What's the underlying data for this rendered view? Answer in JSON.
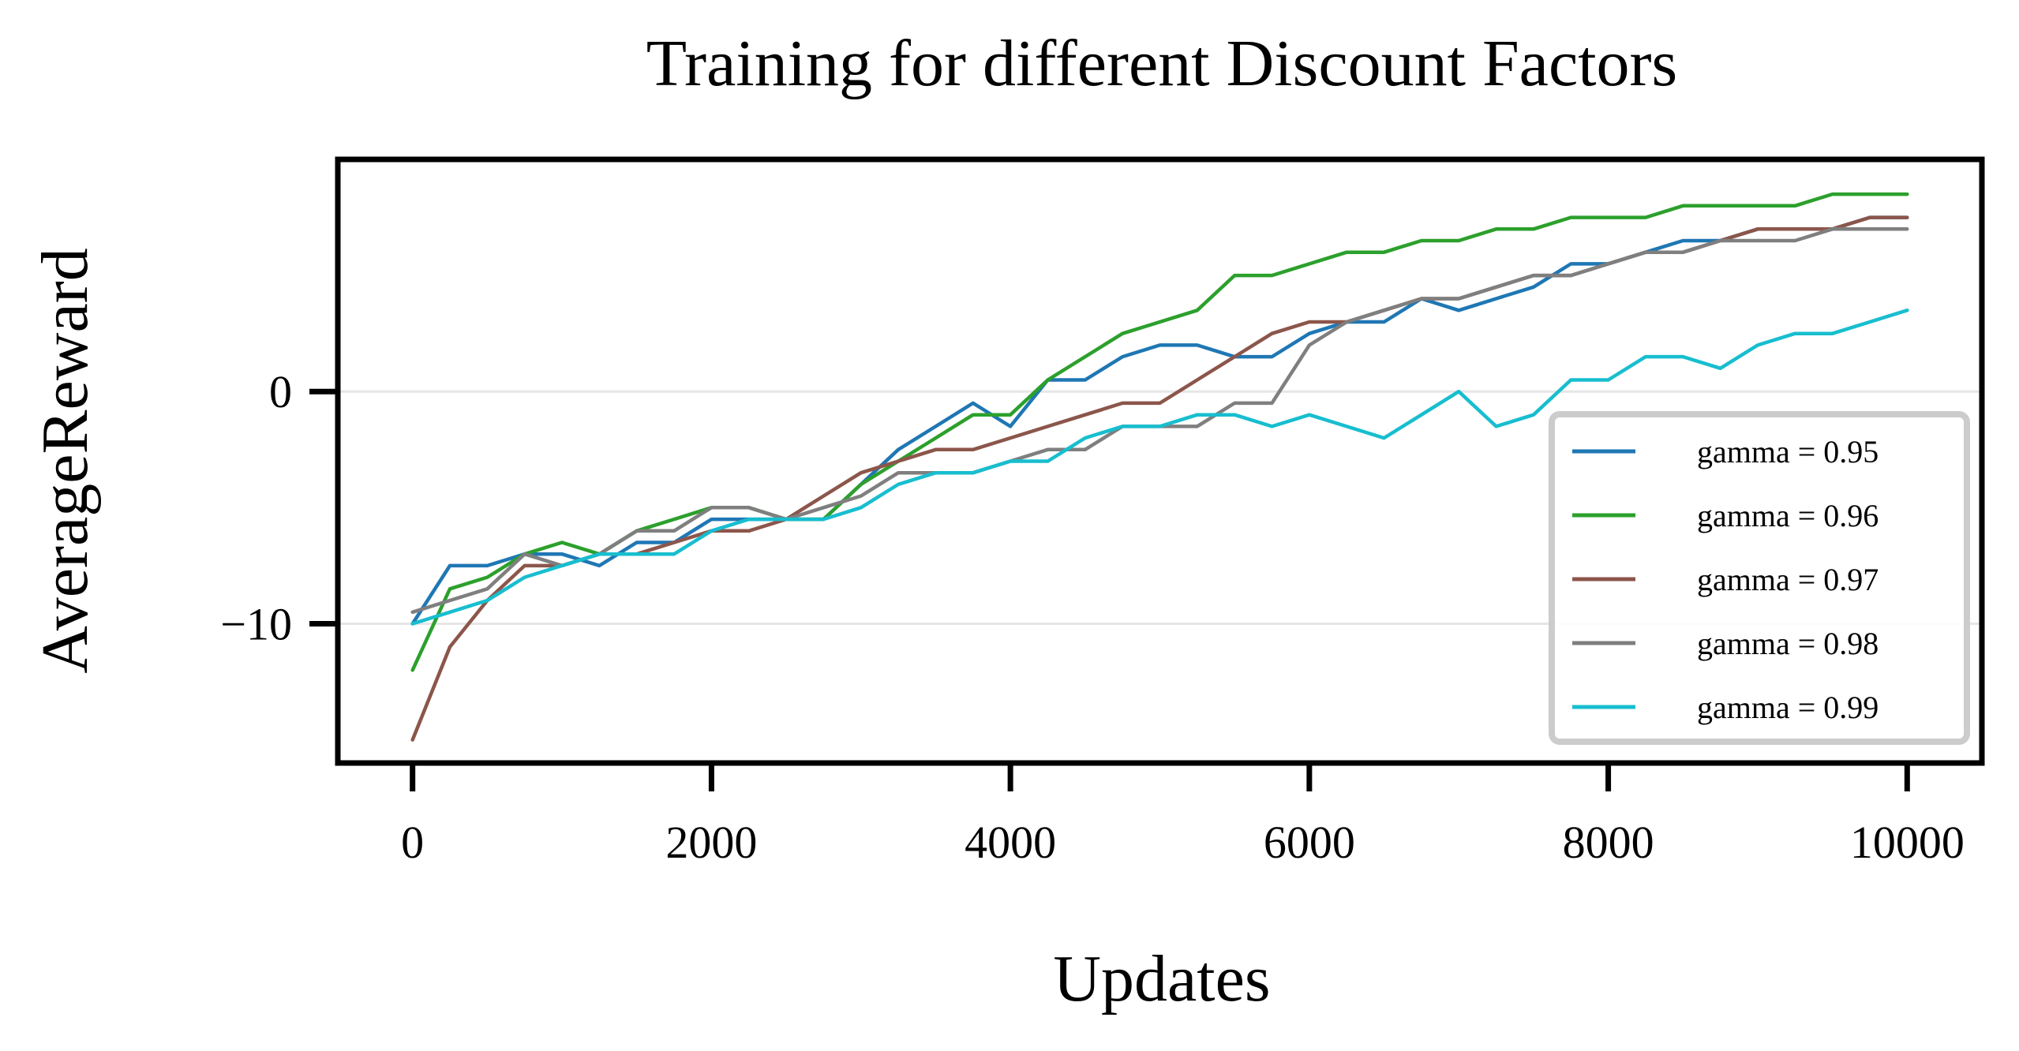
{
  "chart_data": {
    "type": "line",
    "title": "Training for different Discount Factors",
    "xlabel": "Updates",
    "ylabel": "AverageReward",
    "xlim": [
      -500,
      10500
    ],
    "ylim": [
      -16,
      10
    ],
    "xticks": [
      0,
      2000,
      4000,
      6000,
      8000,
      10000
    ],
    "xtick_labels": [
      "0",
      "2000",
      "4000",
      "6000",
      "8000",
      "10000"
    ],
    "yticks": [
      -10,
      0
    ],
    "ytick_labels": [
      "−10",
      "0"
    ],
    "grid": "horizontal",
    "legend_position": "lower-right",
    "x": [
      0,
      250,
      500,
      750,
      1000,
      1250,
      1500,
      1750,
      2000,
      2250,
      2500,
      2750,
      3000,
      3250,
      3500,
      3750,
      4000,
      4250,
      4500,
      4750,
      5000,
      5250,
      5500,
      5750,
      6000,
      6250,
      6500,
      6750,
      7000,
      7250,
      7500,
      7750,
      8000,
      8250,
      8500,
      8750,
      9000,
      9250,
      9500,
      9750,
      10000
    ],
    "series": [
      {
        "name": "gamma = 0.95",
        "color": "#1f77b4",
        "values": [
          -10.0,
          -7.5,
          -7.5,
          -7.0,
          -7.0,
          -7.5,
          -6.5,
          -6.5,
          -5.5,
          -5.5,
          -5.5,
          -5.5,
          -4.0,
          -2.5,
          -1.5,
          -0.5,
          -1.5,
          0.5,
          0.5,
          1.5,
          2.0,
          2.0,
          1.5,
          1.5,
          2.5,
          3.0,
          3.0,
          4.0,
          3.5,
          4.0,
          4.5,
          5.5,
          5.5,
          6.0,
          6.5,
          6.5,
          7.0,
          7.0,
          7.0,
          7.5,
          7.5
        ]
      },
      {
        "name": "gamma = 0.96",
        "color": "#2ca02c",
        "values": [
          -12.0,
          -8.5,
          -8.0,
          -7.0,
          -6.5,
          -7.0,
          -6.0,
          -5.5,
          -5.0,
          -5.0,
          -5.5,
          -5.5,
          -4.0,
          -3.0,
          -2.0,
          -1.0,
          -1.0,
          0.5,
          1.5,
          2.5,
          3.0,
          3.5,
          5.0,
          5.0,
          5.5,
          6.0,
          6.0,
          6.5,
          6.5,
          7.0,
          7.0,
          7.5,
          7.5,
          7.5,
          8.0,
          8.0,
          8.0,
          8.0,
          8.5,
          8.5,
          8.5
        ]
      },
      {
        "name": "gamma = 0.97",
        "color": "#8c564b",
        "values": [
          -15.0,
          -11.0,
          -9.0,
          -7.5,
          -7.5,
          -7.0,
          -7.0,
          -6.5,
          -6.0,
          -6.0,
          -5.5,
          -4.5,
          -3.5,
          -3.0,
          -2.5,
          -2.5,
          -2.0,
          -1.5,
          -1.0,
          -0.5,
          -0.5,
          0.5,
          1.5,
          2.5,
          3.0,
          3.0,
          3.5,
          4.0,
          4.0,
          4.5,
          5.0,
          5.0,
          5.5,
          6.0,
          6.0,
          6.5,
          7.0,
          7.0,
          7.0,
          7.5,
          7.5
        ]
      },
      {
        "name": "gamma = 0.98",
        "color": "#7f7f7f",
        "values": [
          -9.5,
          -9.0,
          -8.5,
          -7.0,
          -7.5,
          -7.0,
          -6.0,
          -6.0,
          -5.0,
          -5.0,
          -5.5,
          -5.0,
          -4.5,
          -3.5,
          -3.5,
          -3.5,
          -3.0,
          -2.5,
          -2.5,
          -1.5,
          -1.5,
          -1.5,
          -0.5,
          -0.5,
          2.0,
          3.0,
          3.5,
          4.0,
          4.0,
          4.5,
          5.0,
          5.0,
          5.5,
          6.0,
          6.0,
          6.5,
          6.5,
          6.5,
          7.0,
          7.0,
          7.0
        ]
      },
      {
        "name": "gamma = 0.99",
        "color": "#17becf",
        "values": [
          -10.0,
          -9.5,
          -9.0,
          -8.0,
          -7.5,
          -7.0,
          -7.0,
          -7.0,
          -6.0,
          -5.5,
          -5.5,
          -5.5,
          -5.0,
          -4.0,
          -3.5,
          -3.5,
          -3.0,
          -3.0,
          -2.0,
          -1.5,
          -1.5,
          -1.0,
          -1.0,
          -1.5,
          -1.0,
          -1.5,
          -2.0,
          -1.0,
          0.0,
          -1.5,
          -1.0,
          0.5,
          0.5,
          1.5,
          1.5,
          1.0,
          2.0,
          2.5,
          2.5,
          3.0,
          3.5
        ]
      }
    ]
  }
}
